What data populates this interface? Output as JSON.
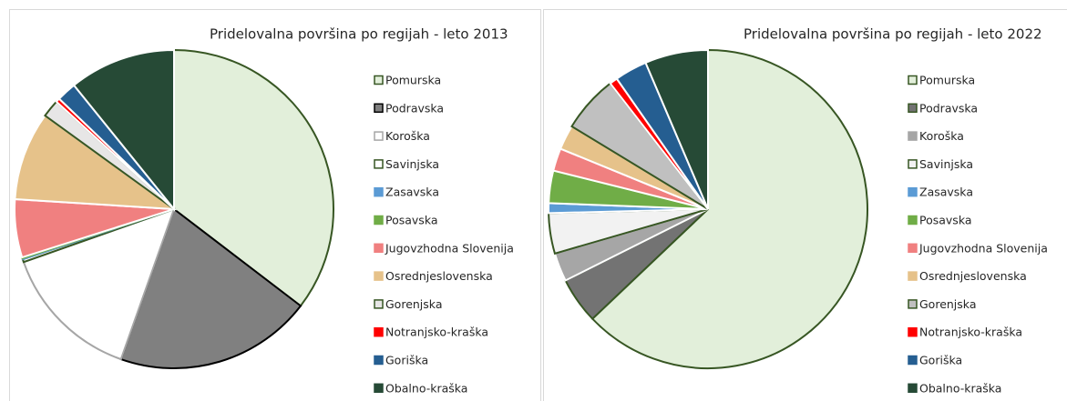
{
  "chart_data": [
    {
      "type": "pie",
      "title": "Pridelovalna površina po regijah - leto 2013",
      "series": [
        {
          "name": "Pomurska",
          "color": "#e2efda",
          "edgecolor": "#375623",
          "values": [
            35.4
          ]
        },
        {
          "name": "Podravska",
          "color": "#808080",
          "edgecolor": "#000000",
          "values": [
            20.0
          ]
        },
        {
          "name": "Koroška",
          "color": "#ffffff",
          "edgecolor": "#a6a6a6",
          "values": [
            14.2
          ]
        },
        {
          "name": "Savinjska",
          "color": "#ffffff",
          "edgecolor": "#375623",
          "values": [
            0.3
          ]
        },
        {
          "name": "Zasavska",
          "color": "#5b9bd5",
          "edgecolor": "#5b9bd5",
          "values": [
            0.1
          ]
        },
        {
          "name": "Posavska",
          "color": "#70ad47",
          "edgecolor": "#70ad47",
          "values": [
            0.1
          ]
        },
        {
          "name": "Jugovzhodna Slovenija",
          "color": "#f08080",
          "edgecolor": "#ffffff",
          "values": [
            5.9
          ]
        },
        {
          "name": "Osrednjeslovenska",
          "color": "#e6c28a",
          "edgecolor": "#ffffff",
          "values": [
            9.0
          ]
        },
        {
          "name": "Gorenjska",
          "color": "#e7e6e6",
          "edgecolor": "#375623",
          "values": [
            1.8
          ]
        },
        {
          "name": "Notranjsko-kraška",
          "color": "#ff0000",
          "edgecolor": "#ffffff",
          "values": [
            0.4
          ]
        },
        {
          "name": "Goriška",
          "color": "#255e91",
          "edgecolor": "#ffffff",
          "values": [
            2.0
          ]
        },
        {
          "name": "Obalno-kraška",
          "color": "#264a36",
          "edgecolor": "#ffffff",
          "values": [
            10.8
          ]
        }
      ]
    },
    {
      "type": "pie",
      "title": "Pridelovalna površina po regijah - leto 2022",
      "series": [
        {
          "name": "Pomurska",
          "color": "#e2efda",
          "edgecolor": "#375623",
          "values": [
            62.9
          ]
        },
        {
          "name": "Podravska",
          "color": "#737373",
          "edgecolor": "#375623",
          "values": [
            4.7
          ]
        },
        {
          "name": "Koroška",
          "color": "#a6a6a6",
          "edgecolor": "#ffffff",
          "values": [
            2.9
          ]
        },
        {
          "name": "Savinjska",
          "color": "#f2f2f2",
          "edgecolor": "#375623",
          "values": [
            4.1
          ]
        },
        {
          "name": "Zasavska",
          "color": "#5b9bd5",
          "edgecolor": "#ffffff",
          "values": [
            1.0
          ]
        },
        {
          "name": "Posavska",
          "color": "#70ad47",
          "edgecolor": "#ffffff",
          "values": [
            3.3
          ]
        },
        {
          "name": "Jugovzhodna Slovenija",
          "color": "#f08080",
          "edgecolor": "#ffffff",
          "values": [
            2.3
          ]
        },
        {
          "name": "Osrednjeslovenska",
          "color": "#e6c28a",
          "edgecolor": "#ffffff",
          "values": [
            2.5
          ]
        },
        {
          "name": "Gorenjska",
          "color": "#c0c0c0",
          "edgecolor": "#375623",
          "values": [
            5.8
          ]
        },
        {
          "name": "Notranjsko-kraška",
          "color": "#ff0000",
          "edgecolor": "#ffffff",
          "values": [
            0.8
          ]
        },
        {
          "name": "Goriška",
          "color": "#255e91",
          "edgecolor": "#ffffff",
          "values": [
            3.3
          ]
        },
        {
          "name": "Obalno-kraška",
          "color": "#264a36",
          "edgecolor": "#ffffff",
          "values": [
            6.4
          ]
        }
      ]
    }
  ]
}
